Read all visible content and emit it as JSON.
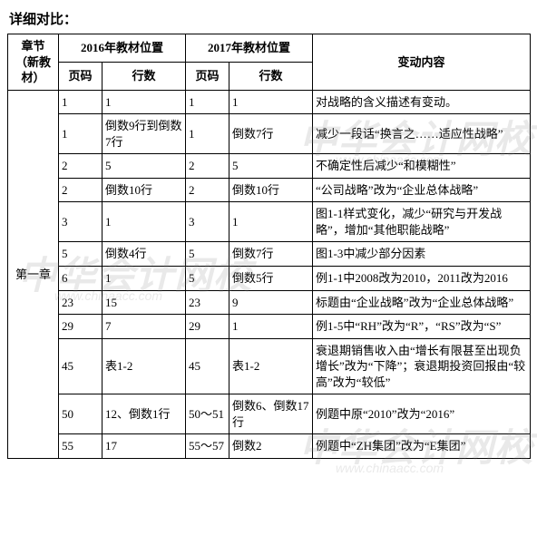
{
  "heading": "详细对比：",
  "header": {
    "chapter": "章节（新教材）",
    "y2016": "2016年教材位置",
    "y2017": "2017年教材位置",
    "page": "页码",
    "line": "行数",
    "change": "变动内容"
  },
  "chapter_label": "第一章",
  "rows": [
    {
      "p16": "1",
      "l16": "1",
      "p17": "1",
      "l17": "1",
      "change": "对战略的含义描述有变动。"
    },
    {
      "p16": "1",
      "l16": "倒数9行到倒数7行",
      "p17": "1",
      "l17": "倒数7行",
      "change": "减少一段话“换言之……适应性战略”"
    },
    {
      "p16": "2",
      "l16": "5",
      "p17": "2",
      "l17": "5",
      "change": "不确定性后减少“和模糊性”"
    },
    {
      "p16": "2",
      "l16": "倒数10行",
      "p17": "2",
      "l17": "倒数10行",
      "change": "“公司战略”改为“企业总体战略”"
    },
    {
      "p16": "3",
      "l16": "1",
      "p17": "3",
      "l17": "1",
      "change": "图1-1样式变化，减少“研究与开发战略”，增加“其他职能战略”"
    },
    {
      "p16": "5",
      "l16": "倒数4行",
      "p17": "5",
      "l17": "倒数7行",
      "change": "图1-3中减少部分因素"
    },
    {
      "p16": "6",
      "l16": "1",
      "p17": "5",
      "l17": "倒数5行",
      "change": "例1-1中2008改为2010，2011改为2016"
    },
    {
      "p16": "23",
      "l16": "15",
      "p17": "23",
      "l17": "9",
      "change": "标题由“企业战略”改为“企业总体战略”"
    },
    {
      "p16": "29",
      "l16": "7",
      "p17": "29",
      "l17": "1",
      "change": "例1-5中“RH”改为“R”，“RS”改为“S”"
    },
    {
      "p16": "45",
      "l16": "表1-2",
      "p17": "45",
      "l17": "表1-2",
      "change": "衰退期销售收入由“增长有限甚至出现负增长”改为“下降”；衰退期投资回报由“较高”改为“较低”"
    },
    {
      "p16": "50",
      "l16": "12、倒数1行",
      "p17": "50～51",
      "l17": "倒数6、倒数17行",
      "change": "例题中原“2010”改为“2016”"
    },
    {
      "p16": "55",
      "l16": "17",
      "p17": "55～57",
      "l17": "倒数2",
      "change": "例题中“ZH集团”改为“E集团”"
    }
  ],
  "watermark": {
    "text_cn": "中华会计网校",
    "text_en": "www.chinaacc.com"
  },
  "colors": {
    "text": "#000000",
    "border": "#000000",
    "background": "#ffffff",
    "watermark": "#888888"
  }
}
